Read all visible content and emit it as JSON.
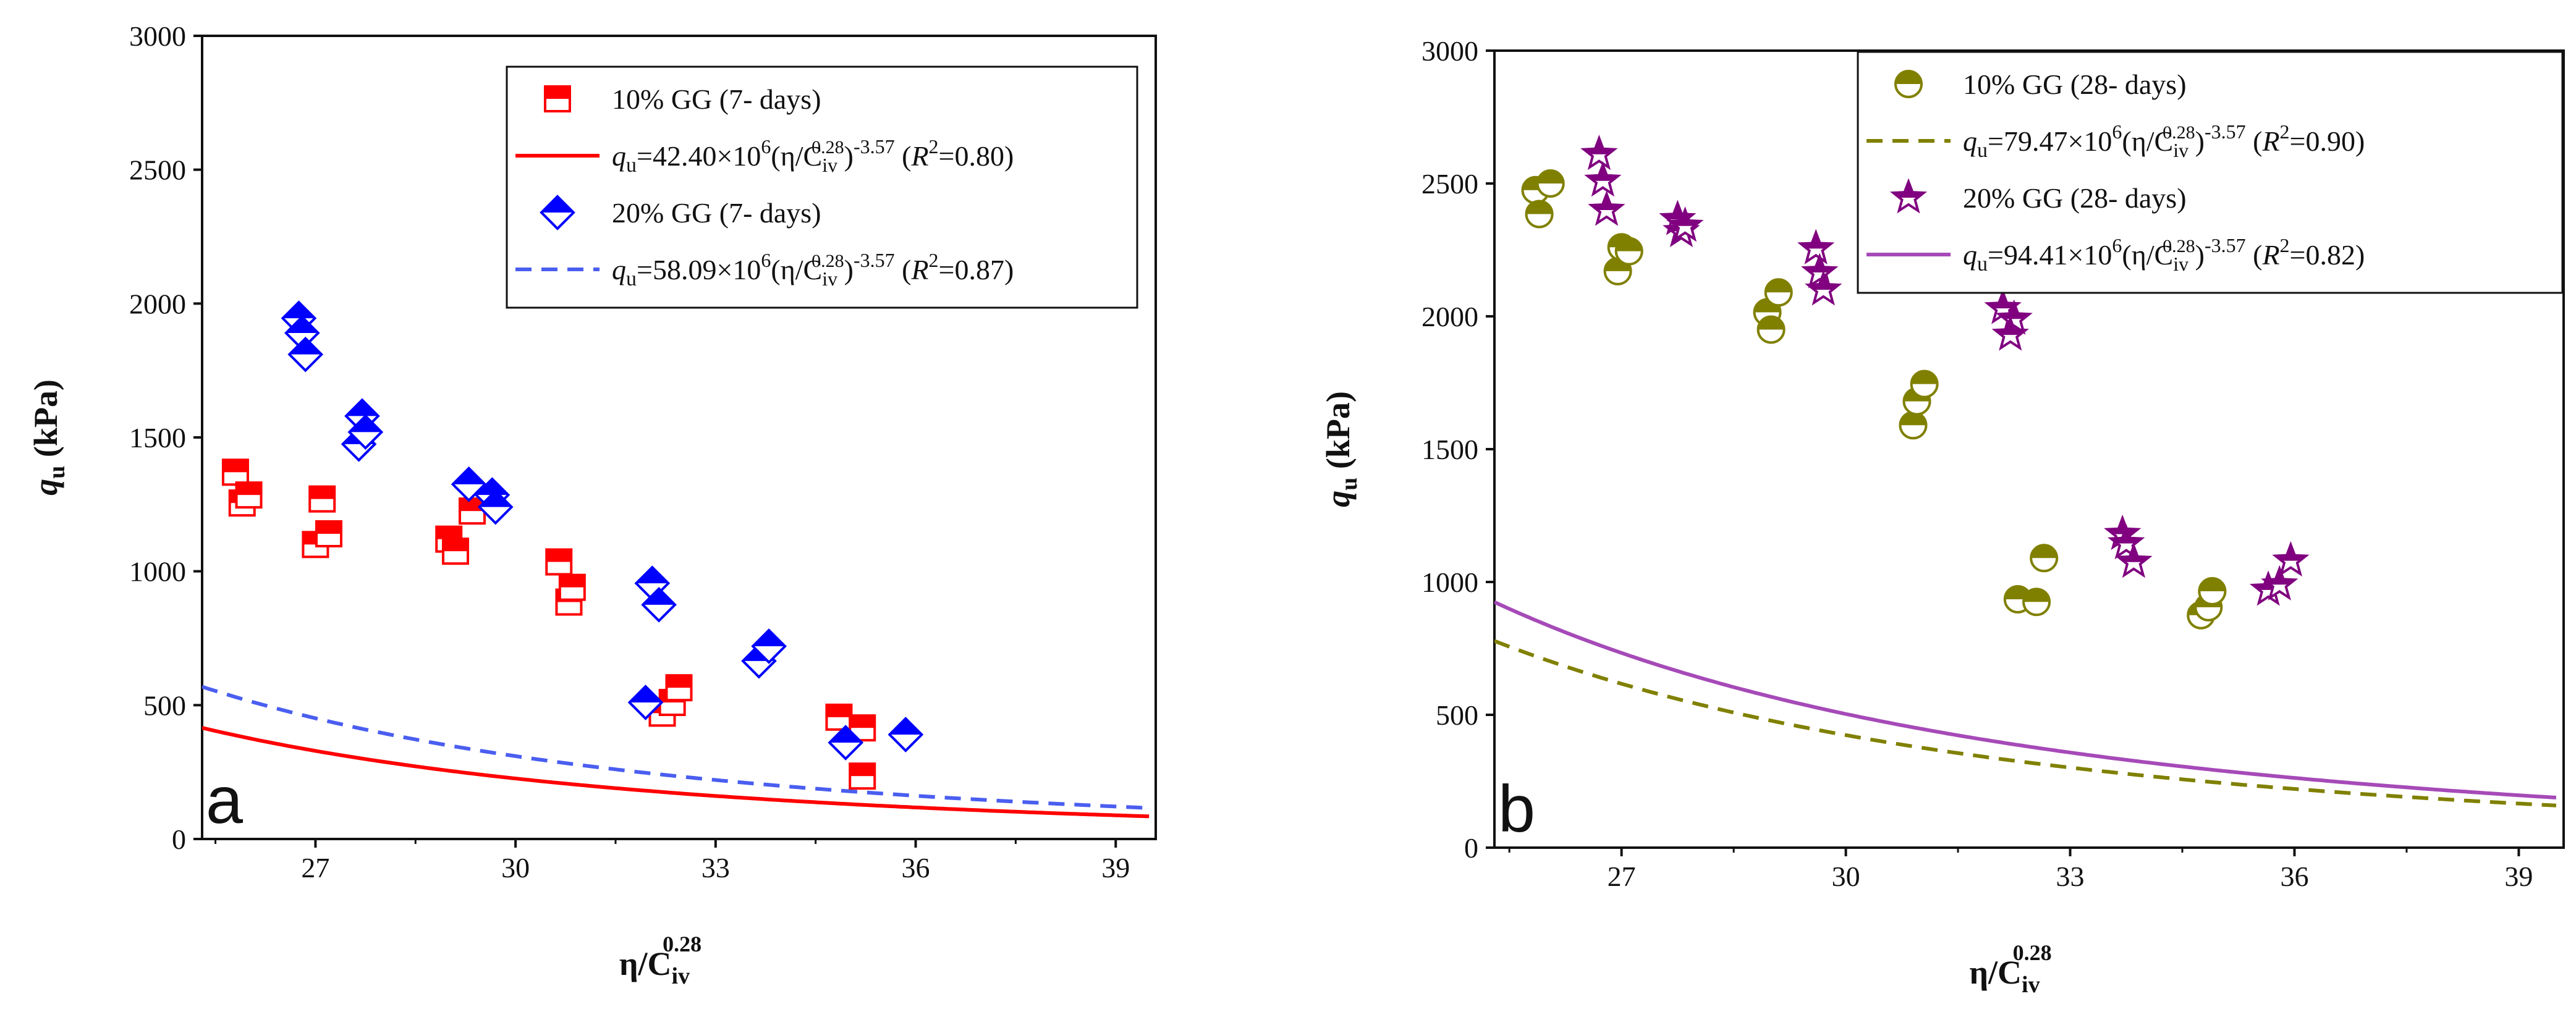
{
  "chart_data": [
    {
      "type": "scatter",
      "panel_letter": "a",
      "ylabel": {
        "main": "q",
        "sub": "u",
        "rest": " (kPa)"
      },
      "xlabel": {
        "main": "η/C",
        "sub": "iv",
        "sup": "0.28"
      },
      "xlim": [
        25.3,
        39.6
      ],
      "ylim": [
        0,
        3000
      ],
      "xticks": [
        27,
        30,
        33,
        36,
        39
      ],
      "xtick_labels": [
        "27",
        "30",
        "33",
        "36",
        "39"
      ],
      "yticks": [
        0,
        500,
        1000,
        1500,
        2000,
        2500,
        3000
      ],
      "ytick_labels": [
        "0",
        "500",
        "1000",
        "1500",
        "2000",
        "2500",
        "3000"
      ],
      "legend_position": "top-right",
      "series": [
        {
          "name": "10% GG (7- days)",
          "marker": "square-half",
          "color": "#ff0000",
          "points": [
            [
              25.8,
              1370
            ],
            [
              25.9,
              1255
            ],
            [
              26.0,
              1285
            ],
            [
              27.0,
              1100
            ],
            [
              27.1,
              1270
            ],
            [
              27.2,
              1140
            ],
            [
              29.0,
              1120
            ],
            [
              29.1,
              1075
            ],
            [
              29.35,
              1225
            ],
            [
              30.65,
              1035
            ],
            [
              30.8,
              885
            ],
            [
              30.85,
              940
            ],
            [
              32.2,
              470
            ],
            [
              32.35,
              510
            ],
            [
              32.45,
              565
            ],
            [
              34.85,
              455
            ],
            [
              35.2,
              415
            ],
            [
              35.2,
              235
            ]
          ]
        },
        {
          "name": "20% GG (7- days)",
          "marker": "diamond-half",
          "color": "#0000ff",
          "points": [
            [
              26.75,
              1945
            ],
            [
              26.8,
              1890
            ],
            [
              26.85,
              1810
            ],
            [
              27.65,
              1475
            ],
            [
              27.7,
              1580
            ],
            [
              27.75,
              1520
            ],
            [
              29.3,
              1325
            ],
            [
              29.65,
              1285
            ],
            [
              29.7,
              1240
            ],
            [
              32.05,
              955
            ],
            [
              32.15,
              875
            ],
            [
              31.95,
              510
            ],
            [
              33.65,
              665
            ],
            [
              33.8,
              720
            ],
            [
              34.95,
              360
            ],
            [
              35.85,
              390
            ]
          ]
        }
      ],
      "fits": [
        {
          "color": "#ff0000",
          "dash": false,
          "a": 42.4,
          "b": -3.57,
          "label": {
            "pre": "q",
            "pre_sub": "u",
            "eq": "=42.40×10",
            "exp6": "6",
            "mid": "(η/C",
            "csub": "iv",
            "csup": "0.28",
            "close": ")",
            "bexp": "-3.57",
            "r2a": " (",
            "r2": "R",
            "r2exp": "2",
            "r2val": "=0.80)"
          }
        },
        {
          "color": "#4a5ef0",
          "dash": true,
          "a": 58.09,
          "b": -3.57,
          "label": {
            "pre": "q",
            "pre_sub": "u",
            "eq": "=58.09×10",
            "exp6": "6",
            "mid": "(η/C",
            "csub": "iv",
            "csup": "0.28",
            "close": ")",
            "bexp": "-3.57",
            "r2a": " (",
            "r2": "R",
            "r2exp": "2",
            "r2val": "=0.87)"
          }
        }
      ]
    },
    {
      "type": "scatter",
      "panel_letter": "b",
      "ylabel": {
        "main": "q",
        "sub": "u",
        "rest": " (kPa)"
      },
      "xlabel": {
        "main": "η/C",
        "sub": "iv",
        "sup": "0.28"
      },
      "xlim": [
        25.3,
        39.6
      ],
      "ylim": [
        0,
        3000
      ],
      "xticks": [
        27,
        30,
        33,
        36,
        39
      ],
      "xtick_labels": [
        "27",
        "30",
        "33",
        "36",
        "39"
      ],
      "yticks": [
        0,
        500,
        1000,
        1500,
        2000,
        2500,
        3000
      ],
      "ytick_labels": [
        "0",
        "500",
        "1000",
        "1500",
        "2000",
        "2500",
        "3000"
      ],
      "legend_position": "top-right",
      "series": [
        {
          "name": "10% GG (28- days)",
          "marker": "circle-half",
          "color": "#808000",
          "points": [
            [
              25.85,
              2475
            ],
            [
              25.9,
              2385
            ],
            [
              26.05,
              2500
            ],
            [
              26.95,
              2170
            ],
            [
              27.0,
              2260
            ],
            [
              27.1,
              2245
            ],
            [
              28.95,
              2015
            ],
            [
              29.0,
              1950
            ],
            [
              29.1,
              2090
            ],
            [
              30.9,
              1590
            ],
            [
              30.95,
              1680
            ],
            [
              31.05,
              1745
            ],
            [
              32.3,
              935
            ],
            [
              32.55,
              925
            ],
            [
              32.65,
              1090
            ],
            [
              34.75,
              875
            ],
            [
              34.85,
              905
            ],
            [
              34.9,
              965
            ]
          ]
        },
        {
          "name": "20% GG (28- days)",
          "marker": "star-half",
          "color": "#800080",
          "points": [
            [
              26.7,
              2610
            ],
            [
              26.75,
              2510
            ],
            [
              26.8,
              2400
            ],
            [
              27.75,
              2365
            ],
            [
              27.8,
              2320
            ],
            [
              27.85,
              2340
            ],
            [
              29.6,
              2255
            ],
            [
              29.65,
              2165
            ],
            [
              29.7,
              2100
            ],
            [
              32.1,
              2030
            ],
            [
              32.25,
              1990
            ],
            [
              32.2,
              1930
            ],
            [
              33.7,
              1180
            ],
            [
              33.75,
              1145
            ],
            [
              33.85,
              1075
            ],
            [
              35.65,
              970
            ],
            [
              35.8,
              990
            ],
            [
              35.95,
              1080
            ]
          ]
        }
      ],
      "fits": [
        {
          "color": "#808000",
          "dash": true,
          "a": 79.47,
          "b": -3.57,
          "label": {
            "pre": "q",
            "pre_sub": "u",
            "eq": "=79.47×10",
            "exp6": "6",
            "mid": "(η/C",
            "csub": "iv",
            "csup": "0.28",
            "close": ")",
            "bexp": "-3.57",
            "r2a": " (",
            "r2": "R",
            "r2exp": "2",
            "r2val": "=0.90)"
          }
        },
        {
          "color": "#a64ab8",
          "dash": false,
          "a": 94.41,
          "b": -3.57,
          "label": {
            "pre": "q",
            "pre_sub": "u",
            "eq": "=94.41×10",
            "exp6": "6",
            "mid": "(η/C",
            "csub": "iv",
            "csup": "0.28",
            "close": ")",
            "bexp": "-3.57",
            "r2a": " (",
            "r2": "R",
            "r2exp": "2",
            "r2val": "=0.82)"
          }
        }
      ]
    }
  ]
}
